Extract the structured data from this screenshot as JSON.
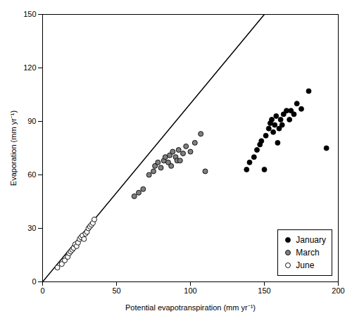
{
  "chart_data": {
    "type": "scatter",
    "xlabel": "Potential evapotranspiration (mm yr⁻¹)",
    "ylabel": "Evaporation (mm yr⁻¹)",
    "xlim": [
      0,
      200
    ],
    "ylim": [
      0,
      150
    ],
    "xticks": [
      0,
      50,
      100,
      150,
      200
    ],
    "yticks": [
      0,
      30,
      60,
      90,
      120,
      150
    ],
    "grid": false,
    "legend": "lower right",
    "series": [
      {
        "type": "line",
        "color": "black",
        "line_style": "solid",
        "x": [
          0,
          150
        ],
        "values": [
          0,
          150
        ]
      },
      {
        "name": "January",
        "color": "black",
        "marker": "circle",
        "x": [
          138,
          140,
          143,
          145,
          147,
          148,
          150,
          151,
          153,
          154,
          155,
          156,
          157,
          158,
          159,
          160,
          161,
          162,
          163,
          165,
          167,
          168,
          170,
          172,
          175,
          180,
          192
        ],
        "values": [
          63,
          67,
          70,
          74,
          77,
          79,
          63,
          82,
          86,
          89,
          91,
          84,
          88,
          93,
          78,
          86,
          91,
          88,
          94,
          96,
          91,
          96,
          94,
          100,
          97,
          107,
          75
        ]
      },
      {
        "name": "March",
        "color": "gray",
        "marker": "circle",
        "x": [
          62,
          65,
          68,
          72,
          75,
          76,
          78,
          80,
          82,
          83,
          85,
          86,
          87,
          88,
          90,
          91,
          92,
          93,
          95,
          97,
          100,
          103,
          107,
          110
        ],
        "values": [
          48,
          50,
          52,
          60,
          62,
          65,
          67,
          64,
          68,
          70,
          67,
          71,
          65,
          73,
          70,
          68,
          74,
          68,
          72,
          76,
          73,
          78,
          83,
          62
        ]
      },
      {
        "name": "June",
        "color": "white",
        "marker": "circle",
        "x": [
          10,
          13,
          15,
          17,
          18,
          19,
          20,
          21,
          22,
          23,
          24,
          25,
          26,
          27,
          28,
          29,
          30,
          31,
          32,
          33,
          34,
          35
        ],
        "values": [
          8,
          10,
          12,
          14,
          16,
          17,
          18,
          19,
          21,
          20,
          22,
          24,
          25,
          26,
          24,
          27,
          28,
          30,
          31,
          32,
          33,
          35
        ]
      }
    ]
  }
}
